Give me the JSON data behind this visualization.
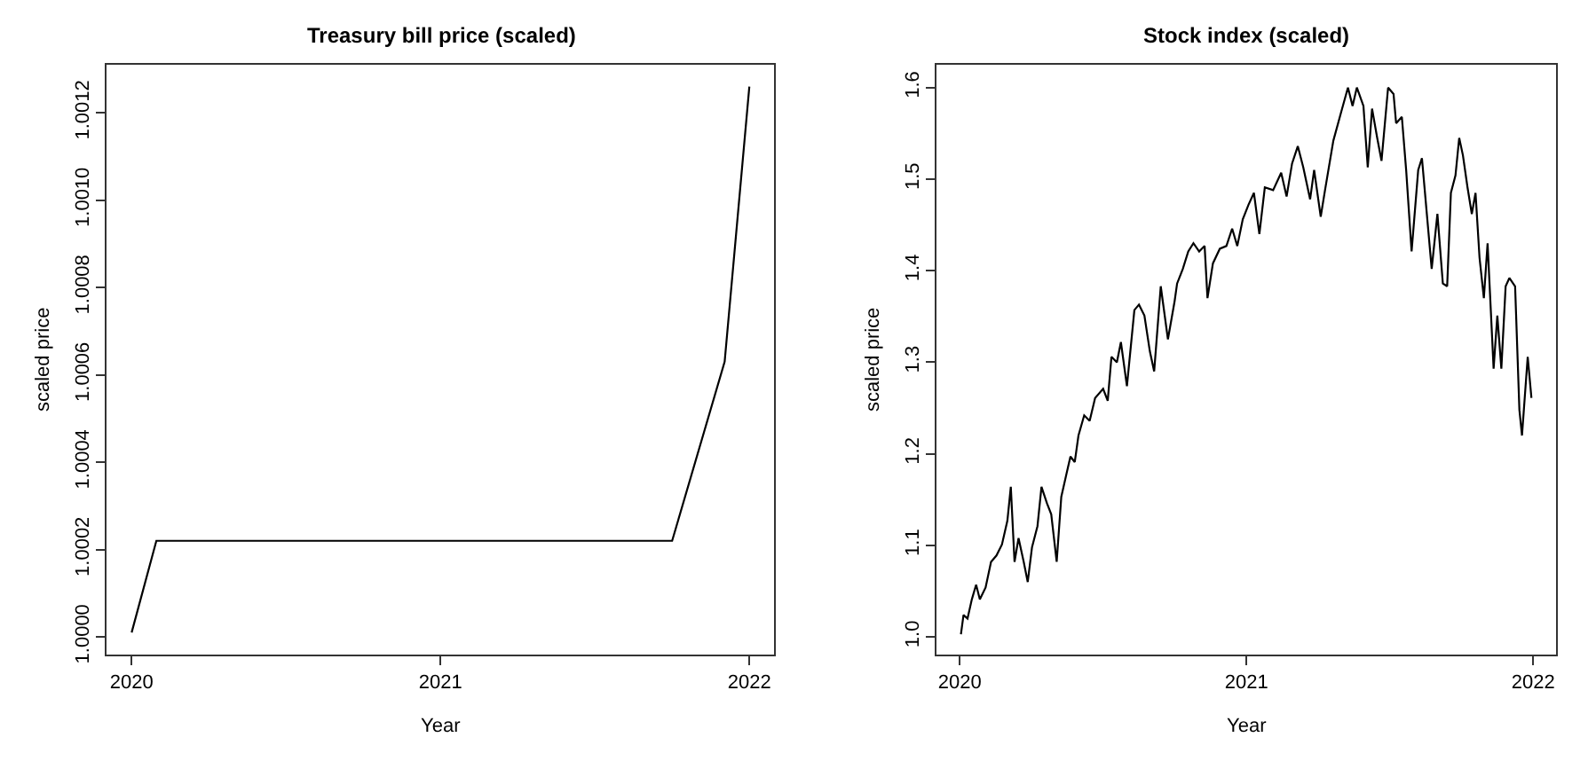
{
  "chart_data": [
    {
      "type": "line",
      "title": "Treasury bill price (scaled)",
      "xlabel": "Year",
      "ylabel": "scaled price",
      "x": [
        2020.0,
        2020.08,
        2021.75,
        2021.92,
        2022.0
      ],
      "series": [
        {
          "color": "#000000",
          "values": [
            1.00001,
            1.00022,
            1.00022,
            1.00063,
            1.00126
          ]
        }
      ],
      "xlim": [
        2019.92,
        2022.08
      ],
      "xticks": [
        2020,
        2021,
        2022
      ],
      "ylim": [
        0.99996,
        1.00131
      ],
      "yticks": [
        {
          "value": 1.0,
          "label": "1.0000"
        },
        {
          "value": 1.0002,
          "label": "1.0002"
        },
        {
          "value": 1.0004,
          "label": "1.0004"
        },
        {
          "value": 1.0006,
          "label": "1.0006"
        },
        {
          "value": 1.0008,
          "label": "1.0008"
        },
        {
          "value": 1.001,
          "label": "1.0010"
        },
        {
          "value": 1.0012,
          "label": "1.0012"
        }
      ],
      "marker": "none",
      "line_style": "solid"
    },
    {
      "type": "line",
      "title": "Stock index (scaled)",
      "xlabel": "Year",
      "ylabel": "scaled price",
      "x": [
        2020.004,
        2020.013,
        2020.027,
        2020.042,
        2020.057,
        2020.07,
        2020.09,
        2020.109,
        2020.128,
        2020.147,
        2020.166,
        2020.178,
        2020.191,
        2020.205,
        2020.223,
        2020.237,
        2020.252,
        2020.271,
        2020.285,
        2020.304,
        2020.319,
        2020.338,
        2020.354,
        2020.372,
        2020.386,
        2020.401,
        2020.414,
        2020.434,
        2020.453,
        2020.472,
        2020.5,
        2020.516,
        2020.529,
        2020.548,
        2020.562,
        2020.583,
        2020.609,
        2020.625,
        2020.644,
        2020.663,
        2020.678,
        2020.701,
        2020.726,
        2020.749,
        2020.758,
        2020.778,
        2020.797,
        2020.815,
        2020.835,
        2020.854,
        2020.864,
        2020.883,
        2020.907,
        2020.93,
        2020.95,
        2020.968,
        2020.987,
        2021.007,
        2021.026,
        2021.045,
        2021.064,
        2021.093,
        2021.121,
        2021.14,
        2021.159,
        2021.179,
        2021.198,
        2021.222,
        2021.236,
        2021.259,
        2021.274,
        2021.303,
        2021.331,
        2021.354,
        2021.37,
        2021.385,
        2021.408,
        2021.423,
        2021.438,
        2021.456,
        2021.471,
        2021.494,
        2021.513,
        2021.522,
        2021.542,
        2021.557,
        2021.576,
        2021.599,
        2021.612,
        2021.628,
        2021.646,
        2021.666,
        2021.685,
        2021.7,
        2021.713,
        2021.729,
        2021.742,
        2021.755,
        2021.771,
        2021.786,
        2021.799,
        2021.813,
        2021.828,
        2021.841,
        2021.862,
        2021.875,
        2021.889,
        2021.904,
        2021.917,
        2021.937,
        2021.952,
        2021.961,
        2021.981,
        2021.994
      ],
      "series": [
        {
          "color": "#000000",
          "values": [
            1.003,
            1.024,
            1.02,
            1.041,
            1.057,
            1.041,
            1.054,
            1.082,
            1.089,
            1.101,
            1.127,
            1.164,
            1.082,
            1.108,
            1.082,
            1.06,
            1.098,
            1.121,
            1.164,
            1.146,
            1.134,
            1.082,
            1.153,
            1.178,
            1.197,
            1.191,
            1.22,
            1.242,
            1.236,
            1.261,
            1.271,
            1.258,
            1.306,
            1.3,
            1.322,
            1.274,
            1.357,
            1.363,
            1.351,
            1.312,
            1.29,
            1.383,
            1.325,
            1.366,
            1.386,
            1.402,
            1.421,
            1.43,
            1.421,
            1.427,
            1.37,
            1.408,
            1.424,
            1.427,
            1.446,
            1.427,
            1.456,
            1.472,
            1.485,
            1.44,
            1.491,
            1.488,
            1.507,
            1.481,
            1.517,
            1.536,
            1.513,
            1.478,
            1.51,
            1.459,
            1.488,
            1.542,
            1.574,
            1.6,
            1.58,
            1.6,
            1.58,
            1.513,
            1.577,
            1.545,
            1.52,
            1.6,
            1.593,
            1.561,
            1.568,
            1.51,
            1.421,
            1.51,
            1.523,
            1.466,
            1.402,
            1.462,
            1.386,
            1.383,
            1.485,
            1.504,
            1.545,
            1.526,
            1.491,
            1.462,
            1.485,
            1.414,
            1.37,
            1.43,
            1.293,
            1.351,
            1.293,
            1.383,
            1.392,
            1.383,
            1.248,
            1.22,
            1.306,
            1.261
          ]
        }
      ],
      "xlim": [
        2019.92,
        2022.08
      ],
      "xticks": [
        2020,
        2021,
        2022
      ],
      "ylim": [
        0.981,
        1.625
      ],
      "yticks": [
        {
          "value": 1.0,
          "label": "1.0"
        },
        {
          "value": 1.1,
          "label": "1.1"
        },
        {
          "value": 1.2,
          "label": "1.2"
        },
        {
          "value": 1.3,
          "label": "1.3"
        },
        {
          "value": 1.4,
          "label": "1.4"
        },
        {
          "value": 1.5,
          "label": "1.5"
        },
        {
          "value": 1.6,
          "label": "1.6"
        }
      ],
      "marker": "none",
      "line_style": "solid"
    }
  ]
}
